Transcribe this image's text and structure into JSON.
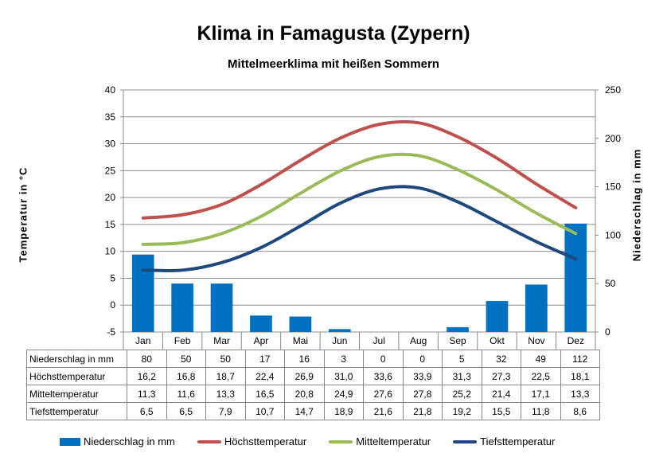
{
  "chart_data": {
    "type": "bar+line",
    "title": "Klima in Famagusta (Zypern)",
    "subtitle": "Mittelmeerklima mit heißen Sommern",
    "ylabel_left": "Temperatur  in  °C",
    "ylabel_right": "Niederschlag  in  mm",
    "ylim_left": [
      -5,
      40
    ],
    "ylim_right": [
      0,
      250
    ],
    "yticks_left": [
      "40",
      "35",
      "30",
      "25",
      "20",
      "15",
      "10",
      "5",
      "0",
      "-5"
    ],
    "yticks_right": [
      "250",
      "200",
      "150",
      "100",
      "50",
      "0"
    ],
    "categories": [
      "Jan",
      "Feb",
      "Mar",
      "Apr",
      "Mai",
      "Jun",
      "Jul",
      "Aug",
      "Sep",
      "Okt",
      "Nov",
      "Dez"
    ],
    "series": [
      {
        "name": "Niederschlag in mm",
        "kind": "bar",
        "axis": "right",
        "color": "#0070C0",
        "values": [
          80,
          50,
          50,
          17,
          16,
          3,
          0,
          0,
          5,
          32,
          49,
          112
        ],
        "labels": [
          "80",
          "50",
          "50",
          "17",
          "16",
          "3",
          "0",
          "0",
          "5",
          "32",
          "49",
          "112"
        ]
      },
      {
        "name": "Höchsttemperatur",
        "kind": "line",
        "axis": "left",
        "color": "#C0504D",
        "values": [
          16.2,
          16.8,
          18.7,
          22.4,
          26.9,
          31.0,
          33.6,
          33.9,
          31.3,
          27.3,
          22.5,
          18.1
        ],
        "labels": [
          "16,2",
          "16,8",
          "18,7",
          "22,4",
          "26,9",
          "31,0",
          "33,6",
          "33,9",
          "31,3",
          "27,3",
          "22,5",
          "18,1"
        ]
      },
      {
        "name": "Mitteltemperatur",
        "kind": "line",
        "axis": "left",
        "color": "#9BBB59",
        "values": [
          11.3,
          11.6,
          13.3,
          16.5,
          20.8,
          24.9,
          27.6,
          27.8,
          25.2,
          21.4,
          17.1,
          13.3
        ],
        "labels": [
          "11,3",
          "11,6",
          "13,3",
          "16,5",
          "20,8",
          "24,9",
          "27,6",
          "27,8",
          "25,2",
          "21,4",
          "17,1",
          "13,3"
        ]
      },
      {
        "name": "Tiefsttemperatur",
        "kind": "line",
        "axis": "left",
        "color": "#1F497D",
        "values": [
          6.5,
          6.5,
          7.9,
          10.7,
          14.7,
          18.9,
          21.6,
          21.8,
          19.2,
          15.5,
          11.8,
          8.6
        ],
        "labels": [
          "6,5",
          "6,5",
          "7,9",
          "10,7",
          "14,7",
          "18,9",
          "21,6",
          "21,8",
          "19,2",
          "15,5",
          "11,8",
          "8,6"
        ]
      }
    ]
  }
}
